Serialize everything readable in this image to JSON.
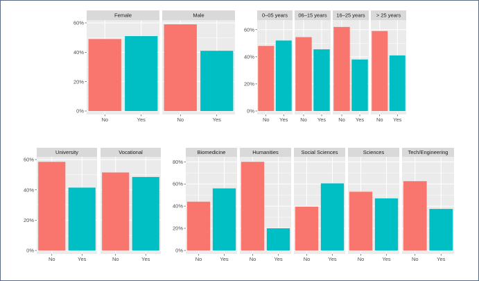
{
  "colors": {
    "no": "#F8766D",
    "yes": "#00BFC4",
    "panel_bg": "#EBEBEB",
    "strip_bg": "#D9D9D9",
    "grid": "#FFFFFF",
    "frame": "#5B6A84"
  },
  "chart_data": [
    {
      "type": "bar",
      "group": "gender",
      "categories": [
        "No",
        "Yes"
      ],
      "ylim": [
        0,
        0.6
      ],
      "yticks": [
        0,
        0.2,
        0.4,
        0.6
      ],
      "ytick_labels": [
        "0%",
        "20%",
        "40%",
        "60%"
      ],
      "panels": [
        {
          "label": "Female",
          "values": [
            0.49,
            0.51
          ]
        },
        {
          "label": "Male",
          "values": [
            0.59,
            0.41
          ]
        }
      ]
    },
    {
      "type": "bar",
      "group": "experience",
      "categories": [
        "No",
        "Yes"
      ],
      "ylim": [
        0,
        0.65
      ],
      "yticks": [
        0,
        0.2,
        0.4,
        0.6
      ],
      "ytick_labels": [
        "0%",
        "20%",
        "40%",
        "60%"
      ],
      "panels": [
        {
          "label": "0–05 years",
          "values": [
            0.48,
            0.52
          ]
        },
        {
          "label": "06–15 years",
          "values": [
            0.545,
            0.455
          ]
        },
        {
          "label": "16–25 years",
          "values": [
            0.62,
            0.38
          ]
        },
        {
          "label": "> 25 years",
          "values": [
            0.59,
            0.41
          ]
        }
      ]
    },
    {
      "type": "bar",
      "group": "education",
      "categories": [
        "No",
        "Yes"
      ],
      "ylim": [
        0,
        0.6
      ],
      "yticks": [
        0,
        0.2,
        0.4,
        0.6
      ],
      "ytick_labels": [
        "0%",
        "20%",
        "40%",
        "60%"
      ],
      "panels": [
        {
          "label": "University",
          "values": [
            0.585,
            0.415
          ]
        },
        {
          "label": "Vocational",
          "values": [
            0.515,
            0.485
          ]
        }
      ]
    },
    {
      "type": "bar",
      "group": "field",
      "categories": [
        "No",
        "Yes"
      ],
      "ylim": [
        0,
        0.82
      ],
      "yticks": [
        0,
        0.2,
        0.4,
        0.6,
        0.8
      ],
      "ytick_labels": [
        "0%",
        "20%",
        "40%",
        "60%",
        "80%"
      ],
      "panels": [
        {
          "label": "Biomedicine",
          "values": [
            0.44,
            0.56
          ]
        },
        {
          "label": "Humanities",
          "values": [
            0.8,
            0.2
          ]
        },
        {
          "label": "Social Sciences",
          "values": [
            0.395,
            0.605
          ]
        },
        {
          "label": "Sciences",
          "values": [
            0.53,
            0.47
          ]
        },
        {
          "label": "Tech/Engineering",
          "values": [
            0.625,
            0.375
          ]
        }
      ]
    }
  ]
}
